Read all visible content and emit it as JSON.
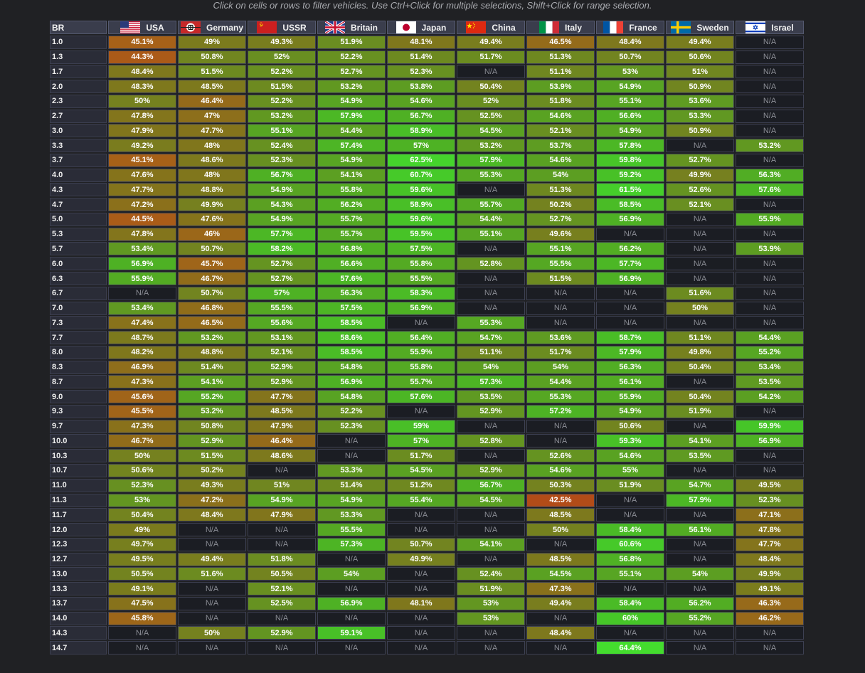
{
  "hint": "Click on cells or rows to filter vehicles. Use Ctrl+Click for multiple selections, Shift+Click for range selection.",
  "br_header": "BR",
  "nations": [
    {
      "name": "USA",
      "flag": "usa-flag-icon"
    },
    {
      "name": "Germany",
      "flag": "germany-flag-icon"
    },
    {
      "name": "USSR",
      "flag": "ussr-flag-icon"
    },
    {
      "name": "Britain",
      "flag": "britain-flag-icon"
    },
    {
      "name": "Japan",
      "flag": "japan-flag-icon"
    },
    {
      "name": "China",
      "flag": "china-flag-icon"
    },
    {
      "name": "Italy",
      "flag": "italy-flag-icon"
    },
    {
      "name": "France",
      "flag": "france-flag-icon"
    },
    {
      "name": "Sweden",
      "flag": "sweden-flag-icon"
    },
    {
      "name": "Israel",
      "flag": "israel-flag-icon"
    }
  ],
  "rows": [
    {
      "br": "1.0",
      "values": [
        "45.1%",
        "49%",
        "49.3%",
        "51.9%",
        "48.1%",
        "49.4%",
        "46.5%",
        "48.4%",
        "49.4%",
        "N/A"
      ]
    },
    {
      "br": "1.3",
      "values": [
        "44.3%",
        "50.8%",
        "52%",
        "52.2%",
        "51.4%",
        "51.7%",
        "51.3%",
        "50.7%",
        "50.6%",
        "N/A"
      ]
    },
    {
      "br": "1.7",
      "values": [
        "48.4%",
        "51.5%",
        "52.2%",
        "52.7%",
        "52.3%",
        "N/A",
        "51.1%",
        "53%",
        "51%",
        "N/A"
      ]
    },
    {
      "br": "2.0",
      "values": [
        "48.3%",
        "48.5%",
        "51.5%",
        "53.2%",
        "53.8%",
        "50.4%",
        "53.9%",
        "54.9%",
        "50.9%",
        "N/A"
      ]
    },
    {
      "br": "2.3",
      "values": [
        "50%",
        "46.4%",
        "52.2%",
        "54.9%",
        "54.6%",
        "52%",
        "51.8%",
        "55.1%",
        "53.6%",
        "N/A"
      ]
    },
    {
      "br": "2.7",
      "values": [
        "47.8%",
        "47%",
        "53.2%",
        "57.9%",
        "56.7%",
        "52.5%",
        "54.6%",
        "56.6%",
        "53.3%",
        "N/A"
      ]
    },
    {
      "br": "3.0",
      "values": [
        "47.9%",
        "47.7%",
        "55.1%",
        "54.4%",
        "58.9%",
        "54.5%",
        "52.1%",
        "54.9%",
        "50.9%",
        "N/A"
      ]
    },
    {
      "br": "3.3",
      "values": [
        "49.2%",
        "48%",
        "52.4%",
        "57.4%",
        "57%",
        "53.2%",
        "53.7%",
        "57.8%",
        "N/A",
        "53.2%"
      ]
    },
    {
      "br": "3.7",
      "values": [
        "45.1%",
        "48.6%",
        "52.3%",
        "54.9%",
        "62.5%",
        "57.9%",
        "54.6%",
        "59.8%",
        "52.7%",
        "N/A"
      ]
    },
    {
      "br": "4.0",
      "values": [
        "47.6%",
        "48%",
        "56.7%",
        "54.1%",
        "60.7%",
        "55.3%",
        "54%",
        "59.2%",
        "49.9%",
        "56.3%"
      ]
    },
    {
      "br": "4.3",
      "values": [
        "47.7%",
        "48.8%",
        "54.9%",
        "55.8%",
        "59.6%",
        "N/A",
        "51.3%",
        "61.5%",
        "52.6%",
        "57.6%"
      ]
    },
    {
      "br": "4.7",
      "values": [
        "47.2%",
        "49.9%",
        "54.3%",
        "56.2%",
        "58.9%",
        "55.7%",
        "50.2%",
        "58.5%",
        "52.1%",
        "N/A"
      ]
    },
    {
      "br": "5.0",
      "values": [
        "44.5%",
        "47.6%",
        "54.9%",
        "55.7%",
        "59.6%",
        "54.4%",
        "52.7%",
        "56.9%",
        "N/A",
        "55.9%"
      ]
    },
    {
      "br": "5.3",
      "values": [
        "47.8%",
        "46%",
        "57.7%",
        "55.7%",
        "59.5%",
        "55.1%",
        "49.6%",
        "N/A",
        "N/A",
        "N/A"
      ]
    },
    {
      "br": "5.7",
      "values": [
        "53.4%",
        "50.7%",
        "58.2%",
        "56.8%",
        "57.5%",
        "N/A",
        "55.1%",
        "56.2%",
        "N/A",
        "53.9%"
      ]
    },
    {
      "br": "6.0",
      "values": [
        "56.9%",
        "45.7%",
        "52.7%",
        "56.6%",
        "55.8%",
        "52.8%",
        "55.5%",
        "57.7%",
        "N/A",
        "N/A"
      ]
    },
    {
      "br": "6.3",
      "values": [
        "55.9%",
        "46.7%",
        "52.7%",
        "57.6%",
        "55.5%",
        "N/A",
        "51.5%",
        "56.9%",
        "N/A",
        "N/A"
      ]
    },
    {
      "br": "6.7",
      "values": [
        "N/A",
        "50.7%",
        "57%",
        "56.3%",
        "58.3%",
        "N/A",
        "N/A",
        "N/A",
        "51.6%",
        "N/A"
      ]
    },
    {
      "br": "7.0",
      "values": [
        "53.4%",
        "46.8%",
        "55.5%",
        "57.5%",
        "56.9%",
        "N/A",
        "N/A",
        "N/A",
        "50%",
        "N/A"
      ]
    },
    {
      "br": "7.3",
      "values": [
        "47.4%",
        "46.5%",
        "55.6%",
        "58.5%",
        "N/A",
        "55.3%",
        "N/A",
        "N/A",
        "N/A",
        "N/A"
      ]
    },
    {
      "br": "7.7",
      "values": [
        "48.7%",
        "53.2%",
        "53.1%",
        "58.6%",
        "56.4%",
        "54.7%",
        "53.6%",
        "58.7%",
        "51.1%",
        "54.4%"
      ]
    },
    {
      "br": "8.0",
      "values": [
        "48.2%",
        "48.8%",
        "52.1%",
        "58.5%",
        "55.9%",
        "51.1%",
        "51.7%",
        "57.9%",
        "49.8%",
        "55.2%"
      ]
    },
    {
      "br": "8.3",
      "values": [
        "46.9%",
        "51.4%",
        "52.9%",
        "54.8%",
        "55.8%",
        "54%",
        "54%",
        "56.3%",
        "50.4%",
        "53.4%"
      ]
    },
    {
      "br": "8.7",
      "values": [
        "47.3%",
        "54.1%",
        "52.9%",
        "56.9%",
        "55.7%",
        "57.3%",
        "54.4%",
        "56.1%",
        "N/A",
        "53.5%"
      ]
    },
    {
      "br": "9.0",
      "values": [
        "45.6%",
        "55.2%",
        "47.7%",
        "54.8%",
        "57.6%",
        "53.5%",
        "55.3%",
        "55.9%",
        "50.4%",
        "54.2%"
      ]
    },
    {
      "br": "9.3",
      "values": [
        "45.5%",
        "53.2%",
        "48.5%",
        "52.2%",
        "N/A",
        "52.9%",
        "57.2%",
        "54.9%",
        "51.9%",
        "N/A"
      ]
    },
    {
      "br": "9.7",
      "values": [
        "47.3%",
        "50.8%",
        "47.9%",
        "52.3%",
        "59%",
        "N/A",
        "N/A",
        "50.6%",
        "N/A",
        "59.9%"
      ]
    },
    {
      "br": "10.0",
      "values": [
        "46.7%",
        "52.9%",
        "46.4%",
        "N/A",
        "57%",
        "52.8%",
        "N/A",
        "59.3%",
        "54.1%",
        "56.9%"
      ]
    },
    {
      "br": "10.3",
      "values": [
        "50%",
        "51.5%",
        "48.6%",
        "N/A",
        "51.7%",
        "N/A",
        "52.6%",
        "54.6%",
        "53.5%",
        "N/A"
      ]
    },
    {
      "br": "10.7",
      "values": [
        "50.6%",
        "50.2%",
        "N/A",
        "53.3%",
        "54.5%",
        "52.9%",
        "54.6%",
        "55%",
        "N/A",
        "N/A"
      ]
    },
    {
      "br": "11.0",
      "values": [
        "52.3%",
        "49.3%",
        "51%",
        "51.4%",
        "51.2%",
        "56.7%",
        "50.3%",
        "51.9%",
        "54.7%",
        "49.5%"
      ]
    },
    {
      "br": "11.3",
      "values": [
        "53%",
        "47.2%",
        "54.9%",
        "54.9%",
        "55.4%",
        "54.5%",
        "42.5%",
        "N/A",
        "57.9%",
        "52.3%"
      ]
    },
    {
      "br": "11.7",
      "values": [
        "50.4%",
        "48.4%",
        "47.9%",
        "53.3%",
        "N/A",
        "N/A",
        "48.5%",
        "N/A",
        "N/A",
        "47.1%"
      ]
    },
    {
      "br": "12.0",
      "values": [
        "49%",
        "N/A",
        "N/A",
        "55.5%",
        "N/A",
        "N/A",
        "50%",
        "58.4%",
        "56.1%",
        "47.8%"
      ]
    },
    {
      "br": "12.3",
      "values": [
        "49.7%",
        "N/A",
        "N/A",
        "57.3%",
        "50.7%",
        "54.1%",
        "N/A",
        "60.6%",
        "N/A",
        "47.7%"
      ]
    },
    {
      "br": "12.7",
      "values": [
        "49.5%",
        "49.4%",
        "51.8%",
        "N/A",
        "49.9%",
        "N/A",
        "48.5%",
        "56.8%",
        "N/A",
        "48.4%"
      ]
    },
    {
      "br": "13.0",
      "values": [
        "50.5%",
        "51.6%",
        "50.5%",
        "54%",
        "N/A",
        "52.4%",
        "54.5%",
        "55.1%",
        "54%",
        "49.9%"
      ]
    },
    {
      "br": "13.3",
      "values": [
        "49.1%",
        "N/A",
        "52.1%",
        "N/A",
        "N/A",
        "51.9%",
        "47.3%",
        "N/A",
        "N/A",
        "49.1%"
      ]
    },
    {
      "br": "13.7",
      "values": [
        "47.5%",
        "N/A",
        "52.5%",
        "56.9%",
        "48.1%",
        "53%",
        "49.4%",
        "58.4%",
        "56.2%",
        "46.3%"
      ]
    },
    {
      "br": "14.0",
      "values": [
        "45.8%",
        "N/A",
        "N/A",
        "N/A",
        "N/A",
        "53%",
        "N/A",
        "60%",
        "55.2%",
        "46.2%"
      ]
    },
    {
      "br": "14.3",
      "values": [
        "N/A",
        "50%",
        "52.9%",
        "59.1%",
        "N/A",
        "N/A",
        "48.4%",
        "N/A",
        "N/A",
        "N/A"
      ]
    },
    {
      "br": "14.7",
      "values": [
        "N/A",
        "N/A",
        "N/A",
        "N/A",
        "N/A",
        "N/A",
        "N/A",
        "64.4%",
        "N/A",
        "N/A"
      ]
    }
  ]
}
